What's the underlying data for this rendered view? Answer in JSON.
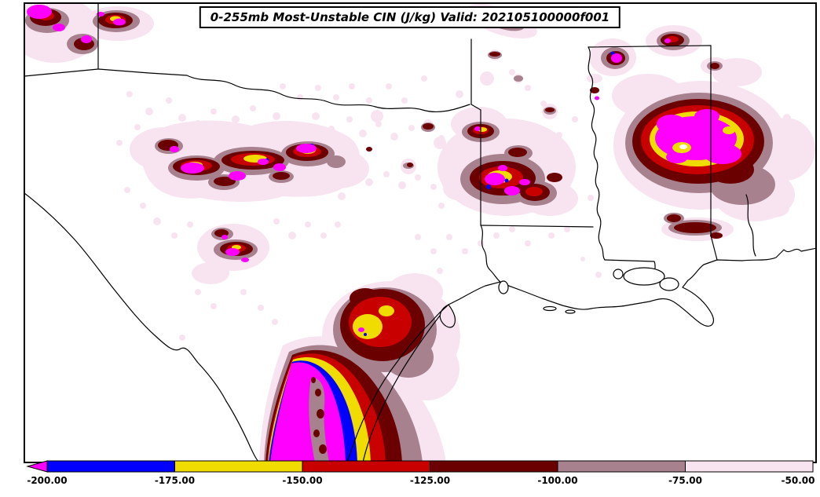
{
  "chart_data": {
    "type": "heatmap",
    "subtype": "filled-contour-weather-map",
    "title": "0-255mb Most-Unstable CIN (J/kg) Valid: 202105100000f001",
    "variable": "Most-Unstable CIN",
    "layer": "0-255mb",
    "units": "J/kg",
    "valid_time": "202105100000f001",
    "colorbar": {
      "orientation": "horizontal",
      "boundaries": [
        -200,
        -175,
        -150,
        -125,
        -100,
        -75,
        -50
      ],
      "labels": [
        "-200.00",
        "-175.00",
        "-150.00",
        "-125.00",
        "-100.00",
        "-75.00",
        "-50.00"
      ],
      "segment_colors": [
        "#0000ff",
        "#f0dc00",
        "#c80000",
        "#6b0000",
        "#a8818f",
        "#f7e4f0"
      ],
      "below_min_color": "#ff00ff",
      "below_min_arrow": true
    },
    "fill_legend": [
      {
        "bin": "< -200",
        "color": "#ff00ff"
      },
      {
        "bin": "-200 to -175",
        "color": "#0000ff"
      },
      {
        "bin": "-175 to -150",
        "color": "#f0dc00"
      },
      {
        "bin": "-150 to -125",
        "color": "#c80000"
      },
      {
        "bin": "-125 to -100",
        "color": "#6b0000"
      },
      {
        "bin": "-100 to -75",
        "color": "#a8818f"
      },
      {
        "bin": "-75 to -50",
        "color": "#f7e4f0"
      },
      {
        "bin": "> -50",
        "color": "#ffffff"
      }
    ],
    "features": [
      {
        "area": "central Mississippi / west Alabama",
        "min_bin": "< -200 J/kg core"
      },
      {
        "area": "south Texas Gulf coast",
        "min_bin": "< -200 J/kg core with banded gradient inland"
      },
      {
        "area": "upper Texas coast near Houston",
        "min_bin": "locally -175 to -150 J/kg"
      },
      {
        "area": "north Texas / Red River corridor",
        "min_bin": "scattered < -200 J/kg pockets"
      },
      {
        "area": "east Texas / northwest Louisiana",
        "min_bin": "scattered < -200 J/kg pockets"
      }
    ]
  }
}
